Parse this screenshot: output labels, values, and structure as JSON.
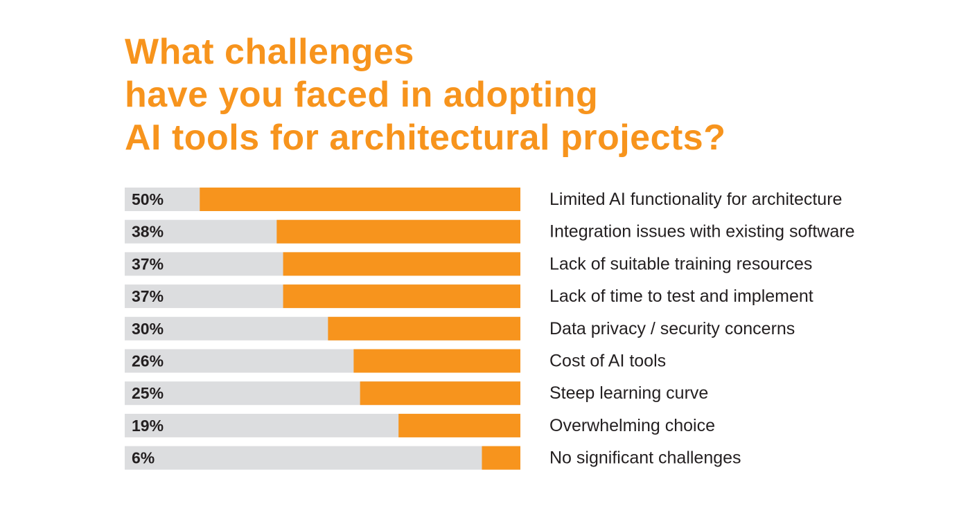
{
  "colors": {
    "accent": "#F7941D",
    "track": "#DCDDDF",
    "text": "#231F20"
  },
  "chart_data": {
    "type": "bar",
    "orientation": "horizontal",
    "title_lines": [
      "What challenges",
      "have you faced in adopting",
      "AI tools for architectural projects?"
    ],
    "categories": [
      "Limited AI functionality for architecture",
      "Integration issues with existing software",
      "Lack of suitable training resources",
      "Lack of time to test and implement",
      "Data privacy / security concerns",
      "Cost of AI tools",
      "Steep learning curve",
      "Overwhelming choice",
      "No significant challenges"
    ],
    "values": [
      50,
      38,
      37,
      37,
      30,
      26,
      25,
      19,
      6
    ],
    "value_labels": [
      "50%",
      "38%",
      "37%",
      "37%",
      "30%",
      "26%",
      "25%",
      "19%",
      "6%"
    ],
    "unit": "%",
    "xlim": [
      0,
      61.7
    ],
    "grid": false
  }
}
